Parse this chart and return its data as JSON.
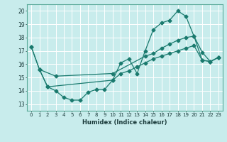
{
  "xlabel": "Humidex (Indice chaleur)",
  "bg_color": "#c8ecec",
  "grid_color": "#ffffff",
  "line_color": "#1a7a6e",
  "xlim": [
    -0.5,
    23.5
  ],
  "ylim": [
    12.5,
    20.5
  ],
  "yticks": [
    13,
    14,
    15,
    16,
    17,
    18,
    19,
    20
  ],
  "xticks": [
    0,
    1,
    2,
    3,
    4,
    5,
    6,
    7,
    8,
    9,
    10,
    11,
    12,
    13,
    14,
    15,
    16,
    17,
    18,
    19,
    20,
    21,
    22,
    23
  ],
  "line1_x": [
    0,
    1,
    2,
    3,
    4,
    5,
    6,
    7,
    8,
    9,
    10,
    11,
    12,
    13,
    14,
    15,
    16,
    17,
    18,
    19,
    20,
    21,
    22,
    23
  ],
  "line1_y": [
    17.3,
    15.6,
    14.3,
    14.0,
    13.5,
    13.3,
    13.3,
    13.9,
    14.1,
    14.1,
    14.8,
    16.1,
    16.4,
    15.3,
    17.0,
    18.6,
    19.1,
    19.3,
    20.0,
    19.6,
    18.1,
    16.9,
    16.2,
    16.5
  ],
  "line2_x": [
    1,
    3,
    10,
    14,
    15,
    16,
    17,
    18,
    19,
    20,
    21,
    22,
    23
  ],
  "line2_y": [
    15.6,
    15.1,
    15.3,
    16.6,
    16.8,
    17.2,
    17.5,
    17.8,
    18.0,
    18.1,
    16.3,
    16.2,
    16.5
  ],
  "line3_x": [
    0,
    1,
    2,
    10,
    11,
    12,
    13,
    14,
    15,
    16,
    17,
    18,
    19,
    20,
    21,
    22,
    23
  ],
  "line3_y": [
    17.3,
    15.6,
    14.3,
    14.8,
    15.3,
    15.5,
    15.8,
    16.1,
    16.4,
    16.6,
    16.8,
    17.0,
    17.2,
    17.4,
    16.3,
    16.2,
    16.5
  ]
}
